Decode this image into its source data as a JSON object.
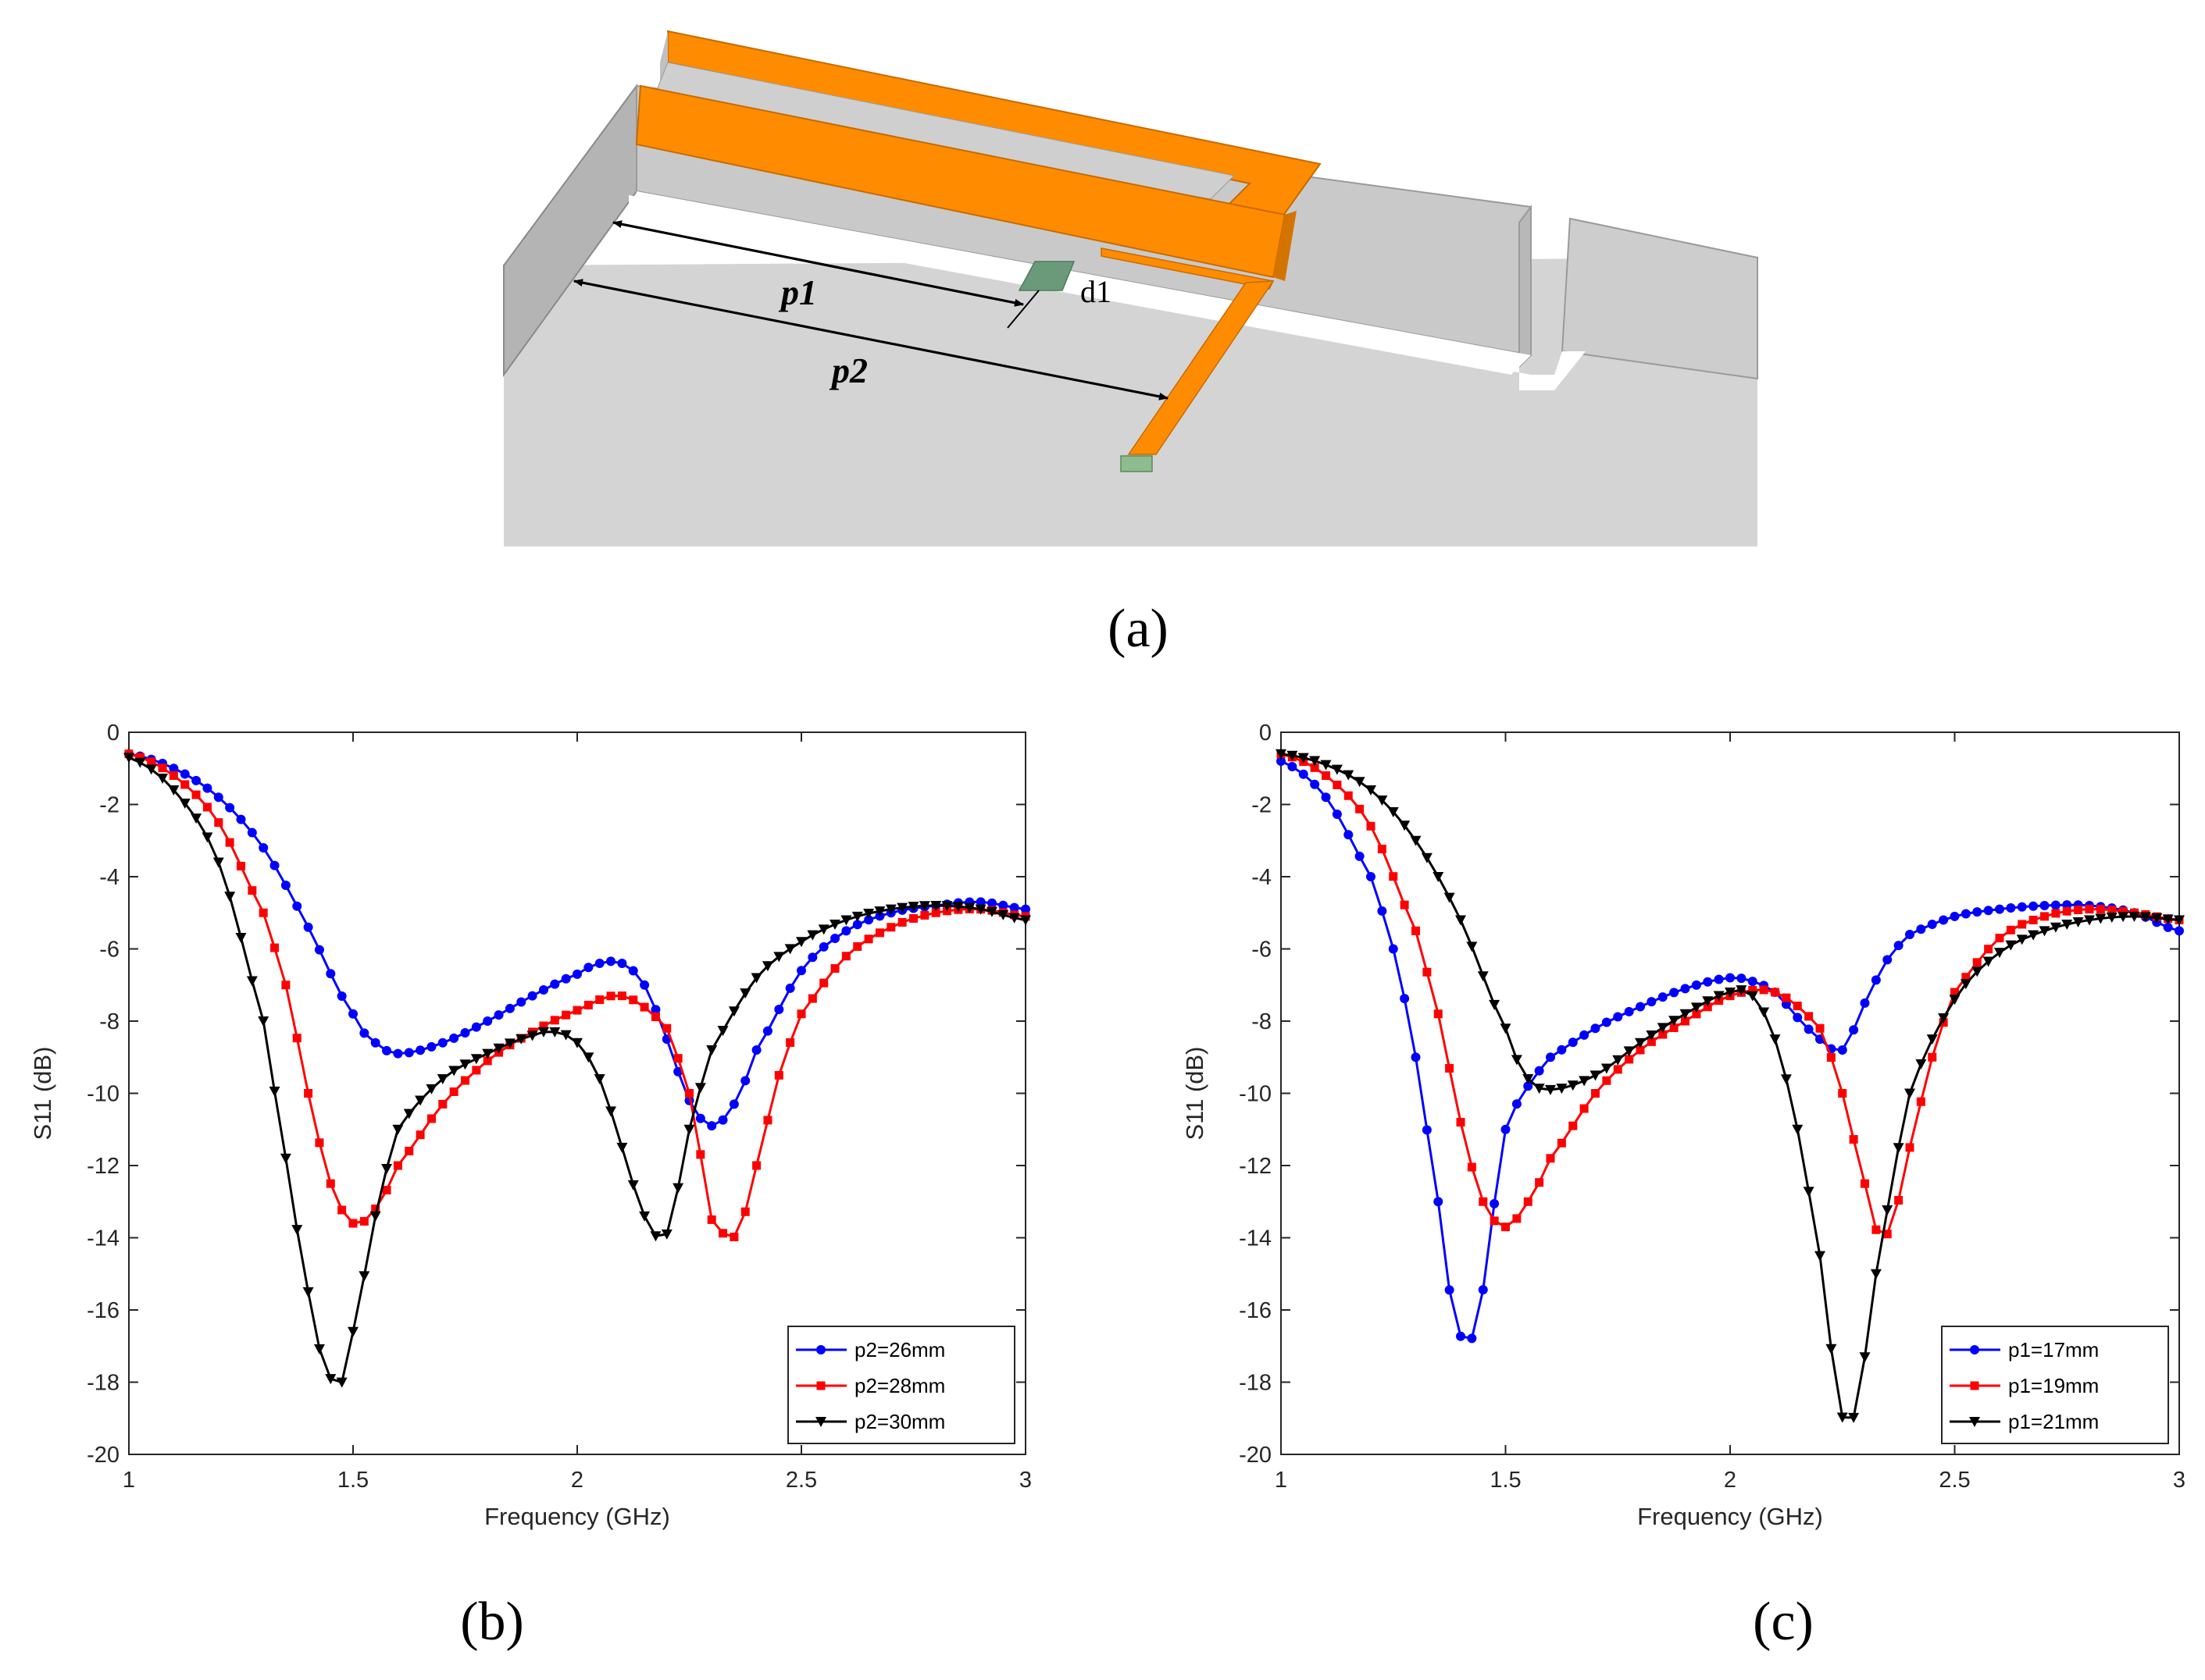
{
  "captions": {
    "a": "(a)",
    "b": "(b)",
    "c": "(c)"
  },
  "diagram": {
    "label_p1": "p1",
    "label_p2": "p2",
    "label_d1": "d1"
  },
  "chart_data": [
    {
      "id": "b",
      "type": "line",
      "title": "",
      "xlabel": "Frequency (GHz)",
      "ylabel": "S11 (dB)",
      "xlim": [
        1,
        3
      ],
      "ylim": [
        -20,
        0
      ],
      "xticks": [
        1,
        1.5,
        2,
        2.5,
        3
      ],
      "yticks": [
        0,
        -2,
        -4,
        -6,
        -8,
        -10,
        -12,
        -14,
        -16,
        -18,
        -20
      ],
      "legend_position": "bottom-right",
      "series": [
        {
          "name": "p2=26mm",
          "color": "#0000ff",
          "marker": "circle",
          "x": [
            1.0,
            1.1,
            1.2,
            1.3,
            1.4,
            1.5,
            1.55,
            1.6,
            1.7,
            1.8,
            1.9,
            2.0,
            2.05,
            2.1,
            2.15,
            2.2,
            2.25,
            2.3,
            2.35,
            2.4,
            2.5,
            2.6,
            2.7,
            2.8,
            2.9,
            3.0
          ],
          "y": [
            -0.6,
            -1.0,
            -1.8,
            -3.2,
            -5.4,
            -7.8,
            -8.6,
            -8.9,
            -8.6,
            -8.0,
            -7.3,
            -6.7,
            -6.4,
            -6.4,
            -7.0,
            -8.5,
            -10.2,
            -10.9,
            -10.3,
            -8.8,
            -6.6,
            -5.5,
            -5.0,
            -4.8,
            -4.7,
            -4.9
          ]
        },
        {
          "name": "p2=28mm",
          "color": "#ff0000",
          "marker": "square",
          "x": [
            1.0,
            1.1,
            1.2,
            1.3,
            1.35,
            1.4,
            1.45,
            1.5,
            1.55,
            1.6,
            1.7,
            1.8,
            1.9,
            2.0,
            2.1,
            2.2,
            2.25,
            2.28,
            2.3,
            2.33,
            2.36,
            2.4,
            2.45,
            2.5,
            2.6,
            2.7,
            2.8,
            2.9,
            3.0
          ],
          "y": [
            -0.6,
            -1.2,
            -2.5,
            -5.0,
            -7.0,
            -10.0,
            -12.5,
            -13.6,
            -13.2,
            -12.0,
            -10.3,
            -9.1,
            -8.3,
            -7.7,
            -7.3,
            -8.2,
            -10.0,
            -12.0,
            -13.5,
            -13.9,
            -13.8,
            -12.0,
            -9.5,
            -7.8,
            -6.2,
            -5.4,
            -5.0,
            -4.9,
            -5.1
          ]
        },
        {
          "name": "p2=30mm",
          "color": "#000000",
          "marker": "triangle-down",
          "x": [
            1.0,
            1.1,
            1.2,
            1.3,
            1.35,
            1.4,
            1.43,
            1.47,
            1.5,
            1.55,
            1.6,
            1.7,
            1.8,
            1.9,
            1.95,
            2.0,
            2.05,
            2.1,
            2.15,
            2.2,
            2.25,
            2.3,
            2.4,
            2.5,
            2.6,
            2.7,
            2.8,
            2.9,
            3.0
          ],
          "y": [
            -0.7,
            -1.6,
            -3.6,
            -8.0,
            -11.8,
            -15.5,
            -17.3,
            -18.1,
            -16.6,
            -13.4,
            -11.0,
            -9.6,
            -8.9,
            -8.4,
            -8.3,
            -8.6,
            -9.6,
            -11.5,
            -13.4,
            -13.9,
            -11.0,
            -8.8,
            -6.8,
            -5.8,
            -5.2,
            -4.9,
            -4.8,
            -4.9,
            -5.2
          ]
        }
      ]
    },
    {
      "id": "c",
      "type": "line",
      "title": "",
      "xlabel": "Frequency (GHz)",
      "ylabel": "S11 (dB)",
      "xlim": [
        1,
        3
      ],
      "ylim": [
        -20,
        0
      ],
      "xticks": [
        1,
        1.5,
        2,
        2.5,
        3
      ],
      "yticks": [
        0,
        -2,
        -4,
        -6,
        -8,
        -10,
        -12,
        -14,
        -16,
        -18,
        -20
      ],
      "legend_position": "bottom-right",
      "series": [
        {
          "name": "p1=17mm",
          "color": "#0000ff",
          "marker": "circle",
          "x": [
            1.0,
            1.1,
            1.2,
            1.25,
            1.3,
            1.35,
            1.38,
            1.41,
            1.44,
            1.47,
            1.5,
            1.55,
            1.6,
            1.7,
            1.8,
            1.9,
            2.0,
            2.05,
            2.1,
            2.15,
            2.2,
            2.25,
            2.3,
            2.35,
            2.4,
            2.5,
            2.6,
            2.7,
            2.8,
            2.9,
            3.0
          ],
          "y": [
            -0.8,
            -1.8,
            -4.0,
            -6.0,
            -9.0,
            -13.0,
            -15.8,
            -16.9,
            -16.2,
            -13.5,
            -11.0,
            -9.8,
            -9.0,
            -8.2,
            -7.6,
            -7.1,
            -6.8,
            -6.9,
            -7.2,
            -7.9,
            -8.5,
            -8.8,
            -7.5,
            -6.3,
            -5.6,
            -5.1,
            -4.9,
            -4.8,
            -4.8,
            -5.0,
            -5.5
          ]
        },
        {
          "name": "p1=19mm",
          "color": "#ff0000",
          "marker": "square",
          "x": [
            1.0,
            1.1,
            1.2,
            1.3,
            1.35,
            1.4,
            1.45,
            1.5,
            1.55,
            1.6,
            1.7,
            1.8,
            1.9,
            2.0,
            2.1,
            2.2,
            2.25,
            2.3,
            2.33,
            2.36,
            2.4,
            2.45,
            2.5,
            2.6,
            2.7,
            2.8,
            2.9,
            3.0
          ],
          "y": [
            -0.6,
            -1.2,
            -2.6,
            -5.5,
            -7.8,
            -10.8,
            -13.0,
            -13.7,
            -13.0,
            -11.8,
            -10.0,
            -8.8,
            -8.0,
            -7.3,
            -7.2,
            -8.2,
            -10.0,
            -12.5,
            -13.9,
            -13.6,
            -11.5,
            -9.0,
            -7.2,
            -5.7,
            -5.1,
            -4.9,
            -5.0,
            -5.2
          ]
        },
        {
          "name": "p1=21mm",
          "color": "#000000",
          "marker": "triangle-down",
          "x": [
            1.0,
            1.1,
            1.2,
            1.3,
            1.4,
            1.5,
            1.55,
            1.6,
            1.7,
            1.8,
            1.9,
            2.0,
            2.05,
            2.1,
            2.15,
            2.2,
            2.23,
            2.26,
            2.29,
            2.33,
            2.4,
            2.5,
            2.6,
            2.7,
            2.8,
            2.9,
            3.0
          ],
          "y": [
            -0.6,
            -0.9,
            -1.6,
            -3.0,
            -5.2,
            -8.2,
            -9.6,
            -9.9,
            -9.5,
            -8.6,
            -7.8,
            -7.2,
            -7.3,
            -8.5,
            -11.0,
            -14.5,
            -17.5,
            -19.3,
            -18.0,
            -14.5,
            -10.0,
            -7.4,
            -6.1,
            -5.5,
            -5.2,
            -5.1,
            -5.2
          ]
        }
      ]
    }
  ]
}
